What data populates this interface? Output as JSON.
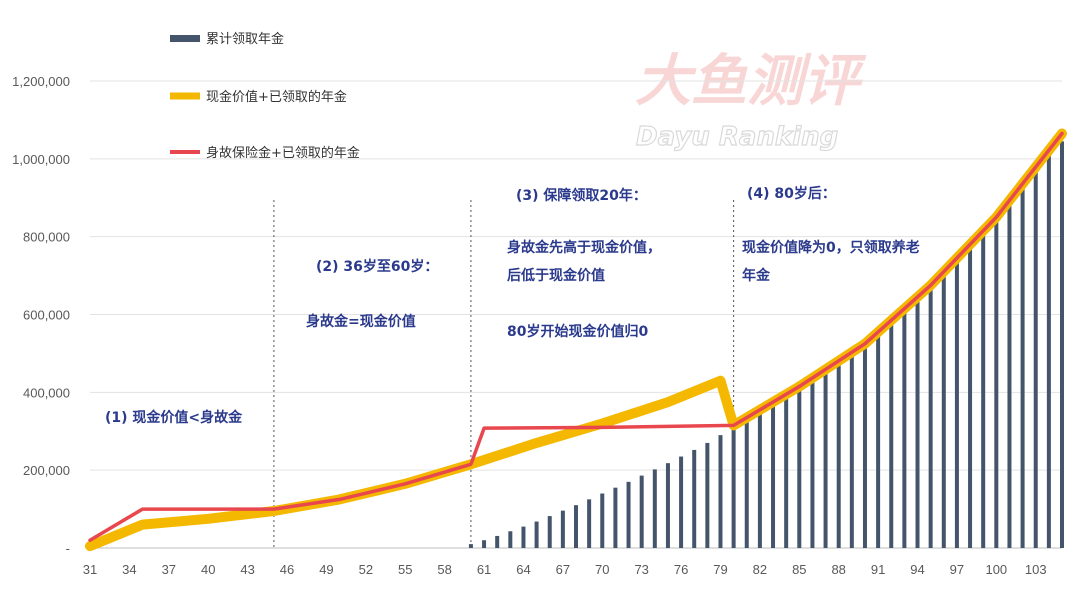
{
  "watermark": {
    "brand": "大鱼测评",
    "brand_en": "Dayu Ranking"
  },
  "legend": {
    "bars": "累计领取年金",
    "cash_line": "现金价值+已领取的年金",
    "death_line": "身故保险金+已领取的年金"
  },
  "annotations": {
    "a1": "(1) 现金价值<身故金",
    "a2_title": "(2) 36岁至60岁：",
    "a2_body": "身故金=现金价值",
    "a3_title": "(3) 保障领取20年：",
    "a3_line1": "身故金先高于现金价值，",
    "a3_line2": "后低于现金价值",
    "a3_line3": "80岁开始现金价值归0",
    "a4_title": "(4) 80岁后：",
    "a4_line1": "现金价值降为0，只领取养老",
    "a4_line2": "年金"
  },
  "colors": {
    "bars": "#44546a",
    "cash_line": "#f5b800",
    "death_line": "#e8484d",
    "annotation": "#2b3a8c",
    "watermark": "#e84b4b"
  },
  "chart_data": {
    "type": "bar+line",
    "x_tick_labels": [
      "31",
      "34",
      "37",
      "40",
      "43",
      "46",
      "49",
      "52",
      "55",
      "58",
      "61",
      "64",
      "67",
      "70",
      "73",
      "76",
      "79",
      "82",
      "85",
      "88",
      "91",
      "94",
      "97",
      "100",
      "103"
    ],
    "y_tick_labels": [
      "-",
      "200,000",
      "400,000",
      "600,000",
      "800,000",
      "1,000,000",
      "1,200,000"
    ],
    "ylim": [
      0,
      1200000
    ],
    "xlim": [
      31,
      105
    ],
    "grid": true,
    "legend_position": "top-left",
    "vlines": [
      45,
      60,
      80
    ],
    "series": [
      {
        "name": "累计领取年金",
        "kind": "bar",
        "x": [
          60,
          61,
          62,
          63,
          64,
          65,
          66,
          67,
          68,
          69,
          70,
          71,
          72,
          73,
          74,
          75,
          76,
          77,
          78,
          79,
          80,
          81,
          82,
          83,
          84,
          85,
          86,
          87,
          88,
          89,
          90,
          91,
          92,
          93,
          94,
          95,
          96,
          97,
          98,
          99,
          100,
          101,
          102,
          103,
          104,
          105
        ],
        "values": [
          10000,
          20000,
          31000,
          43000,
          55000,
          68000,
          82000,
          96000,
          110000,
          125000,
          140000,
          155000,
          170000,
          186000,
          202000,
          218000,
          235000,
          252000,
          270000,
          290000,
          305000,
          325000,
          345000,
          368000,
          390000,
          412000,
          435000,
          458000,
          480000,
          505000,
          530000,
          557000,
          585000,
          615000,
          645000,
          678000,
          710000,
          745000,
          780000,
          818000,
          855000,
          895000,
          935000,
          980000,
          1020000,
          1045000
        ]
      },
      {
        "name": "现金价值+已领取的年金",
        "kind": "line",
        "x": [
          31,
          35,
          40,
          45,
          50,
          55,
          60,
          65,
          70,
          75,
          79,
          80,
          85,
          90,
          95,
          100,
          105
        ],
        "values": [
          5000,
          60000,
          75000,
          95000,
          125000,
          165000,
          215000,
          270000,
          320000,
          375000,
          430000,
          315000,
          415000,
          525000,
          675000,
          850000,
          1065000
        ]
      },
      {
        "name": "身故保险金+已领取的年金",
        "kind": "line",
        "x": [
          31,
          35,
          40,
          45,
          50,
          55,
          60,
          61,
          70,
          80,
          85,
          90,
          95,
          100,
          105
        ],
        "values": [
          20000,
          100000,
          100000,
          100000,
          125000,
          165000,
          215000,
          308000,
          310000,
          315000,
          415000,
          525000,
          675000,
          850000,
          1065000
        ]
      }
    ]
  }
}
